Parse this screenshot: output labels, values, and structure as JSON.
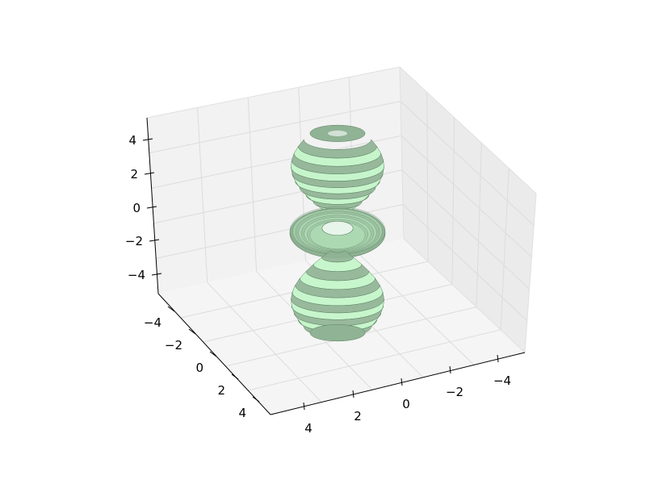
{
  "chart_data": {
    "type": "surface3d",
    "title": "",
    "xlabel": "",
    "ylabel": "",
    "zlabel": "",
    "xlim": [
      -5,
      5
    ],
    "ylim": [
      -5,
      5
    ],
    "zlim": [
      -5,
      5
    ],
    "x_ticks": [
      "−4",
      "−2",
      "0",
      "2",
      "4"
    ],
    "y_ticks": [
      "4",
      "2",
      "0",
      "−2",
      "−4"
    ],
    "z_ticks": [
      "4",
      "2",
      "0",
      "−2",
      "−4"
    ],
    "grid": true,
    "surface": {
      "shape": "d-orbital (two cones with a central torus)",
      "color_light": "#c2f5c8",
      "color_dark": "#8fb394",
      "edge_color": "#5c8062",
      "ring_radius_max": 2,
      "upper_lobe_z": [
        0.8,
        4.6
      ],
      "lower_lobe_z": [
        -4.6,
        -0.8
      ],
      "torus_z": [
        -0.8,
        0.8
      ]
    },
    "pane_colors": {
      "back": "#f2f2f2",
      "side": "#ebebeb",
      "floor": "#f5f5f5",
      "grid": "#dcdcdc"
    }
  }
}
